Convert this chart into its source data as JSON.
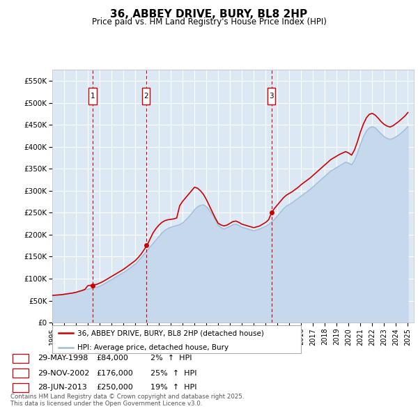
{
  "title": "36, ABBEY DRIVE, BURY, BL8 2HP",
  "subtitle": "Price paid vs. HM Land Registry's House Price Index (HPI)",
  "ylabel_ticks": [
    "£0",
    "£50K",
    "£100K",
    "£150K",
    "£200K",
    "£250K",
    "£300K",
    "£350K",
    "£400K",
    "£450K",
    "£500K",
    "£550K"
  ],
  "ytick_values": [
    0,
    50000,
    100000,
    150000,
    200000,
    250000,
    300000,
    350000,
    400000,
    450000,
    500000,
    550000
  ],
  "ylim": [
    0,
    575000
  ],
  "xlim_start": 1995.0,
  "xlim_end": 2025.5,
  "outer_bg_color": "#ffffff",
  "plot_bg_color": "#dce9f5",
  "grid_color": "#ffffff",
  "hpi_line_color": "#a0bcd8",
  "hpi_fill_color": "#c5d8ec",
  "price_line_color": "#cc0000",
  "vline_color": "#cc0000",
  "sale_marker_color": "#cc0000",
  "transactions": [
    {
      "num": 1,
      "date": "29-MAY-1998",
      "price": 84000,
      "pct": "2%",
      "year": 1998.41
    },
    {
      "num": 2,
      "date": "29-NOV-2002",
      "price": 176000,
      "pct": "25%",
      "year": 2002.92
    },
    {
      "num": 3,
      "date": "28-JUN-2013",
      "price": 250000,
      "pct": "19%",
      "year": 2013.49
    }
  ],
  "legend_label_price": "36, ABBEY DRIVE, BURY, BL8 2HP (detached house)",
  "legend_label_hpi": "HPI: Average price, detached house, Bury",
  "footer": "Contains HM Land Registry data © Crown copyright and database right 2025.\nThis data is licensed under the Open Government Licence v3.0.",
  "hpi_years": [
    1995.0,
    1995.25,
    1995.5,
    1995.75,
    1996.0,
    1996.25,
    1996.5,
    1996.75,
    1997.0,
    1997.25,
    1997.5,
    1997.75,
    1998.0,
    1998.25,
    1998.5,
    1998.75,
    1999.0,
    1999.25,
    1999.5,
    1999.75,
    2000.0,
    2000.25,
    2000.5,
    2000.75,
    2001.0,
    2001.25,
    2001.5,
    2001.75,
    2002.0,
    2002.25,
    2002.5,
    2002.75,
    2003.0,
    2003.25,
    2003.5,
    2003.75,
    2004.0,
    2004.25,
    2004.5,
    2004.75,
    2005.0,
    2005.25,
    2005.5,
    2005.75,
    2006.0,
    2006.25,
    2006.5,
    2006.75,
    2007.0,
    2007.25,
    2007.5,
    2007.75,
    2008.0,
    2008.25,
    2008.5,
    2008.75,
    2009.0,
    2009.25,
    2009.5,
    2009.75,
    2010.0,
    2010.25,
    2010.5,
    2010.75,
    2011.0,
    2011.25,
    2011.5,
    2011.75,
    2012.0,
    2012.25,
    2012.5,
    2012.75,
    2013.0,
    2013.25,
    2013.5,
    2013.75,
    2014.0,
    2014.25,
    2014.5,
    2014.75,
    2015.0,
    2015.25,
    2015.5,
    2015.75,
    2016.0,
    2016.25,
    2016.5,
    2016.75,
    2017.0,
    2017.25,
    2017.5,
    2017.75,
    2018.0,
    2018.25,
    2018.5,
    2018.75,
    2019.0,
    2019.25,
    2019.5,
    2019.75,
    2020.0,
    2020.25,
    2020.5,
    2020.75,
    2021.0,
    2021.25,
    2021.5,
    2021.75,
    2022.0,
    2022.25,
    2022.5,
    2022.75,
    2023.0,
    2023.25,
    2023.5,
    2023.75,
    2024.0,
    2024.25,
    2024.5,
    2024.75,
    2025.0
  ],
  "hpi_values": [
    62000,
    62500,
    63000,
    63500,
    64500,
    65500,
    66500,
    67500,
    69000,
    71000,
    73000,
    75000,
    76000,
    77500,
    79000,
    80500,
    83000,
    86000,
    90000,
    94000,
    98000,
    102000,
    106000,
    110000,
    114000,
    118000,
    123000,
    128000,
    133000,
    140000,
    148000,
    156000,
    164000,
    172000,
    180000,
    188000,
    196000,
    204000,
    210000,
    214000,
    217000,
    219000,
    221000,
    223000,
    227000,
    233000,
    240000,
    248000,
    257000,
    263000,
    267000,
    268000,
    264000,
    256000,
    246000,
    234000,
    222000,
    216000,
    213000,
    216000,
    219000,
    223000,
    224000,
    221000,
    217000,
    215000,
    213000,
    211000,
    209000,
    211000,
    213000,
    216000,
    219000,
    223000,
    229000,
    235000,
    243000,
    251000,
    259000,
    265000,
    269000,
    273000,
    278000,
    283000,
    288000,
    293000,
    298000,
    303000,
    309000,
    315000,
    321000,
    327000,
    333000,
    339000,
    345000,
    349000,
    353000,
    357000,
    361000,
    365000,
    363000,
    359000,
    369000,
    386000,
    406000,
    423000,
    436000,
    443000,
    446000,
    443000,
    436000,
    429000,
    423000,
    419000,
    417000,
    419000,
    423000,
    427000,
    433000,
    439000,
    446000
  ],
  "price_years": [
    1995.0,
    1995.25,
    1995.5,
    1995.75,
    1996.0,
    1996.25,
    1996.5,
    1996.75,
    1997.0,
    1997.25,
    1997.5,
    1997.75,
    1998.0,
    1998.25,
    1998.5,
    1998.75,
    1999.0,
    1999.25,
    1999.5,
    1999.75,
    2000.0,
    2000.25,
    2000.5,
    2000.75,
    2001.0,
    2001.25,
    2001.5,
    2001.75,
    2002.0,
    2002.25,
    2002.5,
    2002.75,
    2003.0,
    2003.25,
    2003.5,
    2003.75,
    2004.0,
    2004.25,
    2004.5,
    2004.75,
    2005.0,
    2005.25,
    2005.5,
    2005.75,
    2006.0,
    2006.25,
    2006.5,
    2006.75,
    2007.0,
    2007.25,
    2007.5,
    2007.75,
    2008.0,
    2008.25,
    2008.5,
    2008.75,
    2009.0,
    2009.25,
    2009.5,
    2009.75,
    2010.0,
    2010.25,
    2010.5,
    2010.75,
    2011.0,
    2011.25,
    2011.5,
    2011.75,
    2012.0,
    2012.25,
    2012.5,
    2012.75,
    2013.0,
    2013.25,
    2013.5,
    2013.75,
    2014.0,
    2014.25,
    2014.5,
    2014.75,
    2015.0,
    2015.25,
    2015.5,
    2015.75,
    2016.0,
    2016.25,
    2016.5,
    2016.75,
    2017.0,
    2017.25,
    2017.5,
    2017.75,
    2018.0,
    2018.25,
    2018.5,
    2018.75,
    2019.0,
    2019.25,
    2019.5,
    2019.75,
    2020.0,
    2020.25,
    2020.5,
    2020.75,
    2021.0,
    2021.25,
    2021.5,
    2021.75,
    2022.0,
    2022.25,
    2022.5,
    2022.75,
    2023.0,
    2023.25,
    2023.5,
    2023.75,
    2024.0,
    2024.25,
    2024.5,
    2024.75,
    2025.0
  ],
  "price_values": [
    62000,
    62500,
    63000,
    63500,
    64500,
    65500,
    66500,
    67500,
    69000,
    71000,
    73000,
    75500,
    84000,
    85000,
    86000,
    87000,
    90000,
    93000,
    97000,
    101000,
    105000,
    109000,
    113000,
    117000,
    121000,
    126000,
    131000,
    136000,
    141000,
    148000,
    156000,
    166000,
    176000,
    190000,
    204000,
    214000,
    222000,
    228000,
    232000,
    234000,
    235000,
    236000,
    238000,
    266000,
    276000,
    284000,
    292000,
    300000,
    308000,
    306000,
    300000,
    292000,
    280000,
    266000,
    252000,
    238000,
    226000,
    222000,
    220000,
    222000,
    226000,
    230000,
    231000,
    228000,
    224000,
    222000,
    220000,
    218000,
    216000,
    218000,
    220000,
    224000,
    228000,
    234000,
    250000,
    260000,
    268000,
    276000,
    284000,
    290000,
    294000,
    298000,
    303000,
    308000,
    314000,
    319000,
    324000,
    329000,
    335000,
    341000,
    347000,
    353000,
    359000,
    365000,
    371000,
    375000,
    379000,
    383000,
    386000,
    389000,
    386000,
    381000,
    393000,
    412000,
    434000,
    452000,
    466000,
    474000,
    476000,
    472000,
    465000,
    457000,
    451000,
    447000,
    445000,
    448000,
    453000,
    458000,
    464000,
    470000,
    478000
  ]
}
